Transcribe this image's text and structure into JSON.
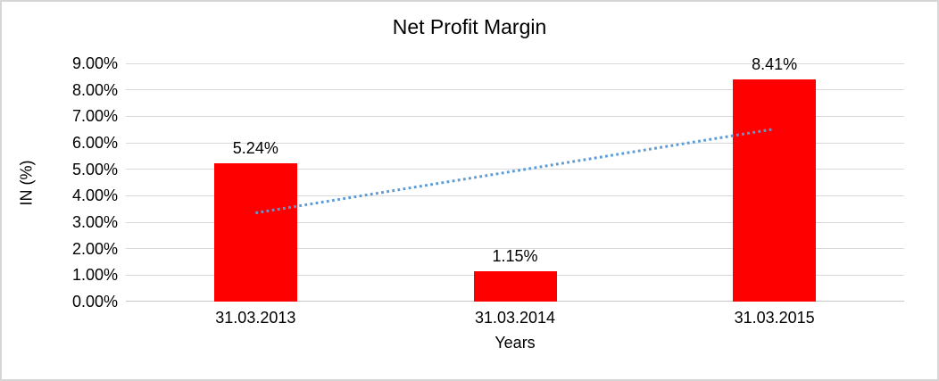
{
  "chart_data": {
    "type": "bar",
    "title": "Net Profit Margin",
    "xlabel": "Years",
    "ylabel": "IN (%)",
    "categories": [
      "31.03.2013",
      "31.03.2014",
      "31.03.2015"
    ],
    "values": [
      5.24,
      1.15,
      8.41
    ],
    "data_labels": [
      "5.24%",
      "1.15%",
      "8.41%"
    ],
    "ylim": [
      0,
      9
    ],
    "ytick_labels": [
      "0.00%",
      "1.00%",
      "2.00%",
      "3.00%",
      "4.00%",
      "5.00%",
      "6.00%",
      "7.00%",
      "8.00%",
      "9.00%"
    ],
    "grid": true,
    "legend": "none",
    "bar_color": "#FF0000",
    "gridline_color": "#D9D9D9",
    "axis_line_color": "#C6C6C6",
    "text_color": "#000000",
    "trendline": {
      "style": "dotted",
      "color": "#5B9BD5",
      "points": [
        {
          "category_index": 0,
          "value": 3.35
        },
        {
          "category_index": 2,
          "value": 6.52
        }
      ]
    }
  }
}
